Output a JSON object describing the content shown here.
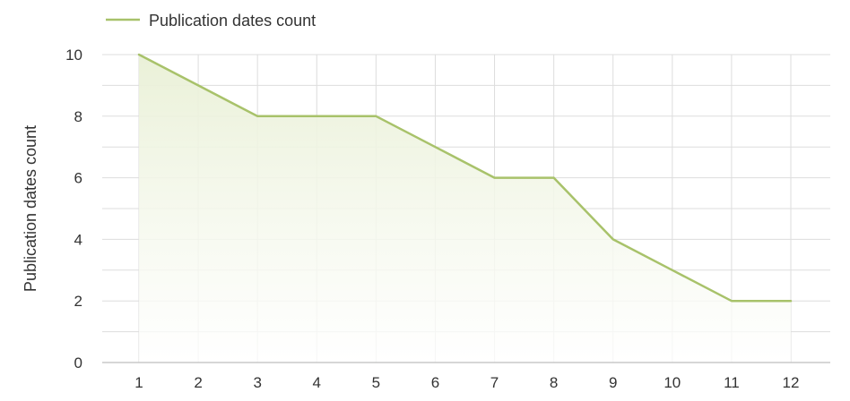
{
  "chart_data": {
    "type": "area",
    "title": "",
    "xlabel": "",
    "ylabel": "Publication dates count",
    "x": [
      1,
      2,
      3,
      4,
      5,
      6,
      7,
      8,
      9,
      10,
      11,
      12
    ],
    "series": [
      {
        "name": "Publication dates count",
        "values": [
          10,
          9,
          8,
          8,
          8,
          7,
          6,
          6,
          4,
          3,
          2,
          2
        ],
        "color": "#a8c26a"
      }
    ],
    "ylim": [
      0,
      10
    ],
    "y_ticks": [
      0,
      2,
      4,
      6,
      8,
      10
    ],
    "x_ticks": [
      1,
      2,
      3,
      4,
      5,
      6,
      7,
      8,
      9,
      10,
      11,
      12
    ],
    "grid": true,
    "legend": "top-left"
  }
}
